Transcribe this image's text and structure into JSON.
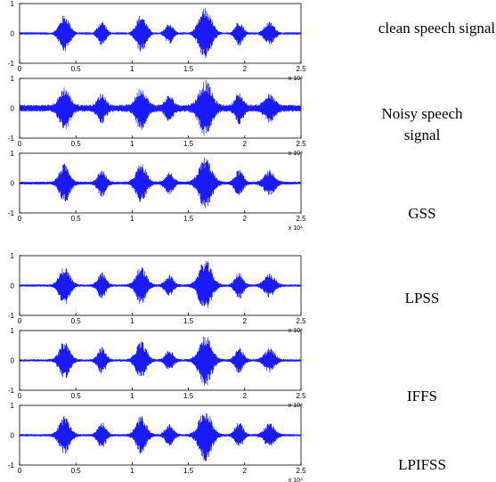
{
  "chart_data": [
    {
      "type": "line",
      "label": "clean speech signal",
      "x_ticks": [
        "0",
        "0.5",
        "1",
        "1.5",
        "2",
        "2.5"
      ],
      "x_exponent": "x 10⁴",
      "y_ticks": [
        "1",
        "0",
        "-1"
      ],
      "xlim": [
        0,
        25000
      ],
      "ylim": [
        -1,
        1
      ],
      "noise_floor": 0.02,
      "bursts": [
        {
          "center": 4000,
          "width": 900,
          "amp": 0.62
        },
        {
          "center": 7300,
          "width": 700,
          "amp": 0.42
        },
        {
          "center": 10800,
          "width": 900,
          "amp": 0.62
        },
        {
          "center": 13300,
          "width": 700,
          "amp": 0.34
        },
        {
          "center": 16500,
          "width": 1100,
          "amp": 0.85
        },
        {
          "center": 19500,
          "width": 700,
          "amp": 0.42
        },
        {
          "center": 22200,
          "width": 900,
          "amp": 0.38
        }
      ]
    },
    {
      "type": "line",
      "label": "Noisy speech signal",
      "x_ticks": [
        "0",
        "0.5",
        "1",
        "1.5",
        "2",
        "2.5"
      ],
      "x_exponent": "x 10⁴",
      "y_ticks": [
        "1",
        "0",
        "-1"
      ],
      "xlim": [
        0,
        25000
      ],
      "ylim": [
        -1,
        1
      ],
      "noise_floor": 0.12,
      "bursts": [
        {
          "center": 4000,
          "width": 900,
          "amp": 0.62
        },
        {
          "center": 7300,
          "width": 700,
          "amp": 0.42
        },
        {
          "center": 10800,
          "width": 900,
          "amp": 0.62
        },
        {
          "center": 13300,
          "width": 700,
          "amp": 0.34
        },
        {
          "center": 16500,
          "width": 1100,
          "amp": 0.85
        },
        {
          "center": 19500,
          "width": 700,
          "amp": 0.42
        },
        {
          "center": 22200,
          "width": 900,
          "amp": 0.38
        }
      ]
    },
    {
      "type": "line",
      "label": "GSS",
      "x_ticks": [
        "0",
        "0.5",
        "1",
        "1.5",
        "2",
        "2.5"
      ],
      "x_exponent": "x 10⁴",
      "y_ticks": [
        "1",
        "0",
        "-1"
      ],
      "xlim": [
        0,
        25000
      ],
      "ylim": [
        -1,
        1
      ],
      "noise_floor": 0.05,
      "bursts": [
        {
          "center": 4000,
          "width": 900,
          "amp": 0.62
        },
        {
          "center": 7300,
          "width": 700,
          "amp": 0.42
        },
        {
          "center": 10800,
          "width": 900,
          "amp": 0.62
        },
        {
          "center": 13300,
          "width": 700,
          "amp": 0.34
        },
        {
          "center": 16500,
          "width": 1100,
          "amp": 0.85
        },
        {
          "center": 19500,
          "width": 700,
          "amp": 0.42
        },
        {
          "center": 22200,
          "width": 900,
          "amp": 0.38
        }
      ]
    },
    {
      "type": "line",
      "label": "LPSS",
      "x_ticks": [
        "0",
        "0.5",
        "1",
        "1.5",
        "2",
        "2.5"
      ],
      "x_exponent": "x 10⁴",
      "y_ticks": [
        "1",
        "0",
        "-1"
      ],
      "xlim": [
        0,
        25000
      ],
      "ylim": [
        -1,
        1
      ],
      "noise_floor": 0.04,
      "bursts": [
        {
          "center": 4000,
          "width": 900,
          "amp": 0.62
        },
        {
          "center": 7300,
          "width": 700,
          "amp": 0.42
        },
        {
          "center": 10800,
          "width": 900,
          "amp": 0.62
        },
        {
          "center": 13300,
          "width": 700,
          "amp": 0.34
        },
        {
          "center": 16500,
          "width": 1100,
          "amp": 0.85
        },
        {
          "center": 19500,
          "width": 700,
          "amp": 0.42
        },
        {
          "center": 22200,
          "width": 900,
          "amp": 0.38
        }
      ]
    },
    {
      "type": "line",
      "label": "IFFS",
      "x_ticks": [
        "0",
        "0.5",
        "1",
        "1.5",
        "2",
        "2.5"
      ],
      "x_exponent": "x 10⁴",
      "y_ticks": [
        "1",
        "0",
        "-1"
      ],
      "xlim": [
        0,
        25000
      ],
      "ylim": [
        -1,
        1
      ],
      "noise_floor": 0.04,
      "bursts": [
        {
          "center": 4000,
          "width": 900,
          "amp": 0.62
        },
        {
          "center": 7300,
          "width": 700,
          "amp": 0.42
        },
        {
          "center": 10800,
          "width": 900,
          "amp": 0.62
        },
        {
          "center": 13300,
          "width": 700,
          "amp": 0.34
        },
        {
          "center": 16500,
          "width": 1100,
          "amp": 0.85
        },
        {
          "center": 19500,
          "width": 700,
          "amp": 0.42
        },
        {
          "center": 22200,
          "width": 900,
          "amp": 0.38
        }
      ]
    },
    {
      "type": "line",
      "label": "LPIFSS",
      "x_ticks": [
        "0",
        "0.5",
        "1",
        "1.5",
        "2",
        "2.5"
      ],
      "x_exponent": "x 10⁴",
      "y_ticks": [
        "1",
        "0",
        "-1"
      ],
      "xlim": [
        0,
        25000
      ],
      "ylim": [
        -1,
        1
      ],
      "noise_floor": 0.04,
      "bursts": [
        {
          "center": 4000,
          "width": 900,
          "amp": 0.62
        },
        {
          "center": 7300,
          "width": 700,
          "amp": 0.42
        },
        {
          "center": 10800,
          "width": 900,
          "amp": 0.62
        },
        {
          "center": 13300,
          "width": 700,
          "amp": 0.34
        },
        {
          "center": 16500,
          "width": 1100,
          "amp": 0.85
        },
        {
          "center": 19500,
          "width": 700,
          "amp": 0.42
        },
        {
          "center": 22200,
          "width": 900,
          "amp": 0.38
        }
      ]
    }
  ],
  "labels": {
    "clean": "clean speech signal",
    "noisy": "Noisy speech signal",
    "gss": "GSS",
    "lpss": "LPSS",
    "iffs": "IFFS",
    "lpifss": "LPIFSS"
  },
  "colors": {
    "signal": "#1a1aff",
    "axis": "#000000"
  }
}
